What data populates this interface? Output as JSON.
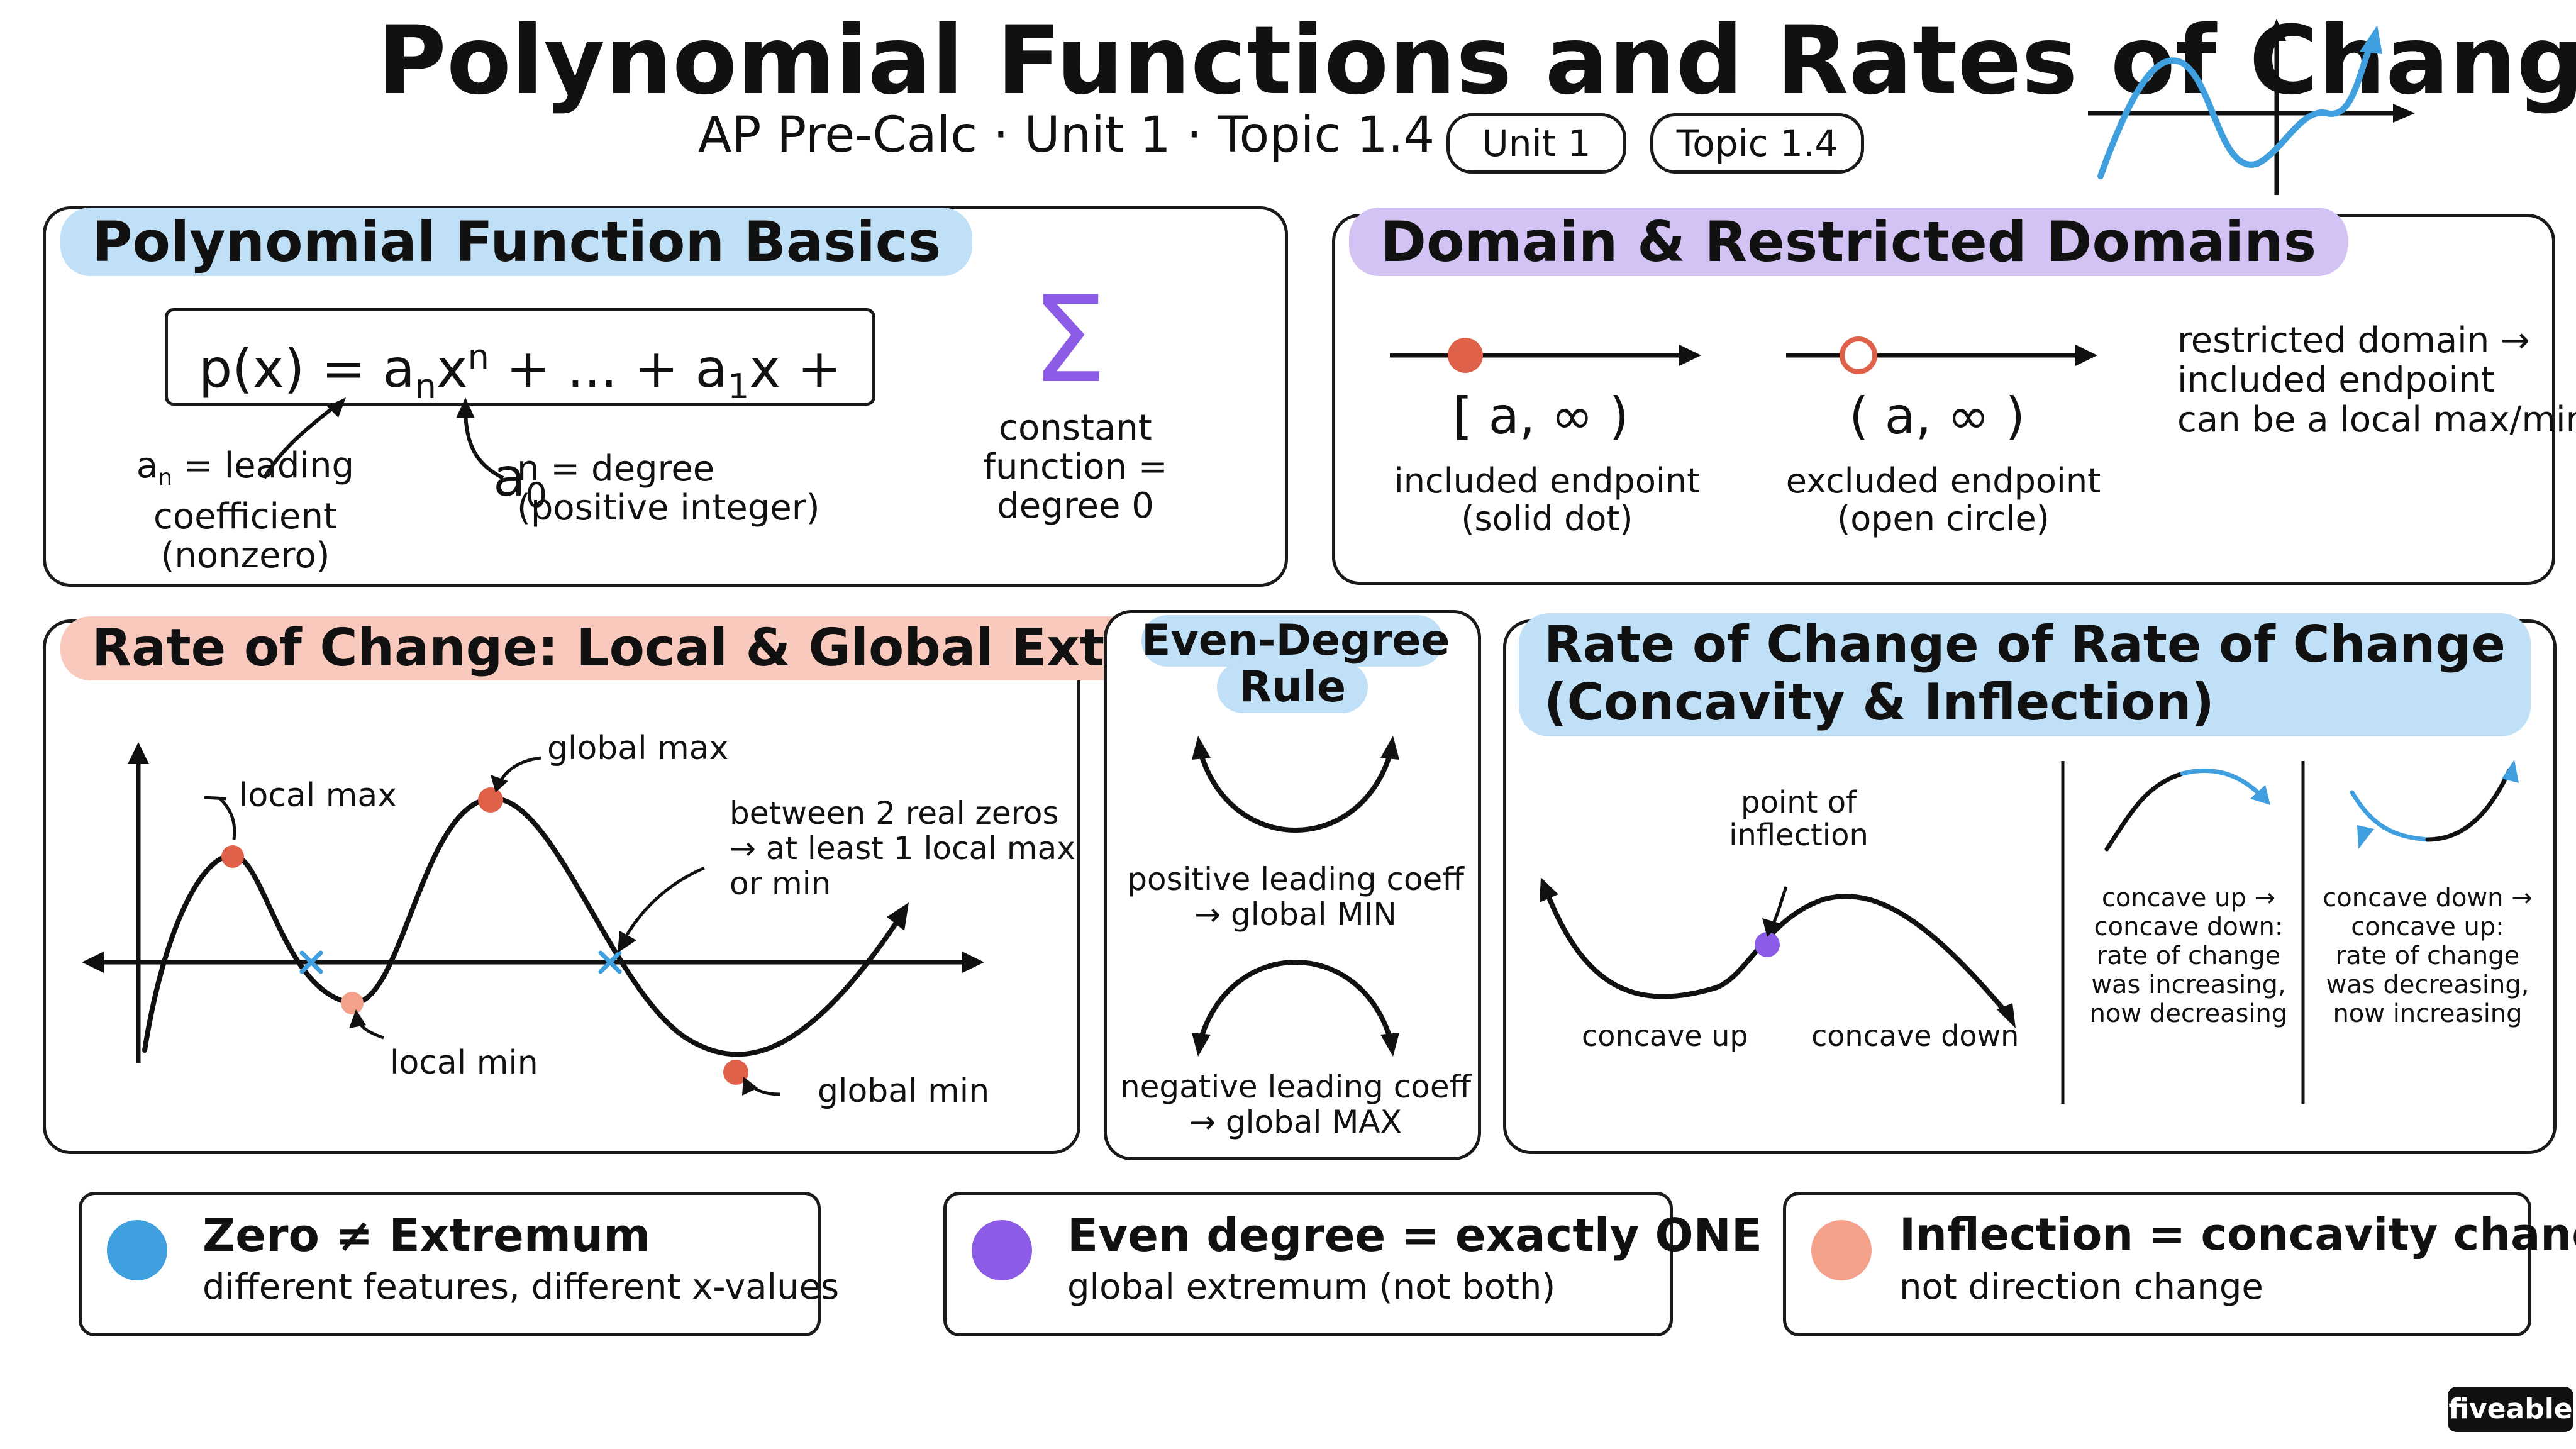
{
  "header": {
    "title": "Polynomial Functions and Rates of Change",
    "subtitle": "AP Pre-Calc · Unit 1 · Topic 1.4",
    "tags": [
      "Unit 1",
      "Topic 1.4"
    ]
  },
  "basics": {
    "heading": "Polynomial Function Basics",
    "formula": {
      "p": "p(x) = a",
      "n_sub": "n",
      "x_sup": "x",
      "n_sup": "n",
      "mid": " + ... + a",
      "one": "1",
      "x_mid": "x + a",
      "zero": "0"
    },
    "leading_label": {
      "a": "a",
      "n": "n",
      "rest": " = leading",
      "line2": "coefficient",
      "line3": "(nonzero)"
    },
    "degree_label": {
      "line1": "n = degree",
      "line2": "(positive integer)"
    },
    "constant_label": {
      "line1": "constant",
      "line2": "function =",
      "line3": "degree 0"
    },
    "sigma": "Σ"
  },
  "domain": {
    "heading": "Domain & Restricted Domains",
    "left": {
      "interval": "[ a, ∞ )",
      "line1": "included endpoint",
      "line2": "(solid dot)"
    },
    "right": {
      "interval": "( a, ∞ )",
      "line1": "excluded endpoint",
      "line2": "(open circle)"
    },
    "note": {
      "line1": "restricted domain →",
      "line2": "included endpoint",
      "line3": "can be a local max/min"
    }
  },
  "extrema": {
    "heading": "Rate of Change: Local & Global Extrema",
    "labels": {
      "local_max": "local max",
      "global_max": "global max",
      "local_min": "local min",
      "global_min": "global min",
      "note1": "between 2 real zeros",
      "note2": "→ at least 1 local max",
      "note3": "or min"
    }
  },
  "even": {
    "heading1": "Even-Degree",
    "heading2": "Rule",
    "pos1": "positive leading coeff",
    "pos2": "→ global MIN",
    "neg1": "negative leading coeff",
    "neg2": "→ global MAX"
  },
  "concavity": {
    "heading1": "Rate of Change of Rate of Change",
    "heading2": "(Concavity & Inflection)",
    "poi1": "point of",
    "poi2": "inflection",
    "concave_up": "concave up",
    "concave_down": "concave down",
    "up_to_down": [
      "concave up →",
      "concave down:",
      "rate of change",
      "was increasing,",
      "now decreasing"
    ],
    "down_to_up": [
      "concave down →",
      "concave up:",
      "rate of change",
      "was decreasing,",
      "now increasing"
    ]
  },
  "takeaways": [
    {
      "title": "Zero ≠ Extremum",
      "text": "different features, different x-values",
      "color": "#3f9fdf"
    },
    {
      "title": "Even degree = exactly ONE",
      "text": "global extremum (not both)",
      "color": "#8c5ce6"
    },
    {
      "title": "Inflection = concavity change,",
      "text": "not direction change",
      "color": "#f4a18c"
    }
  ],
  "colors": {
    "blue": "#3f9fdf",
    "red": "#e0614a",
    "purple": "#8c5ce6",
    "salmon": "#f4a18c"
  },
  "logo": "fiveable"
}
